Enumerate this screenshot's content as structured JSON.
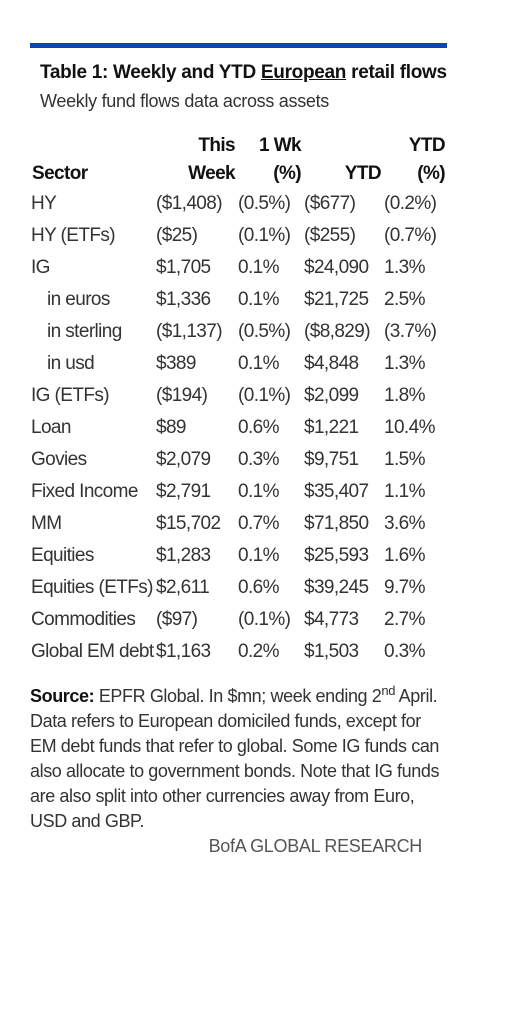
{
  "title": {
    "before": "Table 1: Weekly and YTD",
    "underlined": "European",
    "after": "retail flows"
  },
  "subtitle": "Weekly fund flows data across assets",
  "table": {
    "headers": [
      "Sector",
      "This Week",
      "1 Wk (%)",
      "YTD",
      "YTD (%)"
    ],
    "rows": [
      {
        "cells": [
          "HY",
          "($1,408)",
          "(0.5%)",
          "($677)",
          "(0.2%)"
        ]
      },
      {
        "cells": [
          "HY (ETFs)",
          "($25)",
          "(0.1%)",
          "($255)",
          "(0.7%)"
        ]
      },
      {
        "cells": [
          "IG",
          "$1,705",
          "0.1%",
          "$24,090",
          "1.3%"
        ]
      },
      {
        "cells": [
          "in euros",
          "$1,336",
          "0.1%",
          "$21,725",
          "2.5%"
        ],
        "indent": true
      },
      {
        "cells": [
          "in sterling",
          "($1,137)",
          "(0.5%)",
          "($8,829)",
          "(3.7%)"
        ],
        "indent": true
      },
      {
        "cells": [
          "in usd",
          "$389",
          "0.1%",
          "$4,848",
          "1.3%"
        ],
        "indent": true
      },
      {
        "cells": [
          "IG (ETFs)",
          "($194)",
          "(0.1%)",
          "$2,099",
          "1.8%"
        ]
      },
      {
        "cells": [
          "Loan",
          "$89",
          "0.6%",
          "$1,221",
          "10.4%"
        ]
      },
      {
        "cells": [
          "Govies",
          "$2,079",
          "0.3%",
          "$9,751",
          "1.5%"
        ]
      },
      {
        "cells": [
          "Fixed Income",
          "$2,791",
          "0.1%",
          "$35,407",
          "1.1%"
        ]
      },
      {
        "cells": [
          "MM",
          "$15,702",
          "0.7%",
          "$71,850",
          "3.6%"
        ]
      },
      {
        "cells": [
          "Equities",
          "$1,283",
          "0.1%",
          "$25,593",
          "1.6%"
        ]
      },
      {
        "cells": [
          "Equities (ETFs)",
          "$2,611",
          "0.6%",
          "$39,245",
          "9.7%"
        ]
      },
      {
        "cells": [
          "Commodities",
          "($97)",
          "(0.1%)",
          "$4,773",
          "2.7%"
        ]
      },
      {
        "cells": [
          "Global EM debt",
          "$1,163",
          "0.2%",
          "$1,503",
          "0.3%"
        ]
      }
    ]
  },
  "source": {
    "label": "Source:",
    "text_before": "EPFR Global. In $mn; week ending 2",
    "superscript": "nd",
    "text_after": "April. Data refers to European domiciled funds, except for EM debt funds that refer to global. Some IG funds can also allocate to government bonds. Note that IG funds are also split into other currencies away from Euro, USD and GBP."
  },
  "footer": "BofA GLOBAL RESEARCH"
}
